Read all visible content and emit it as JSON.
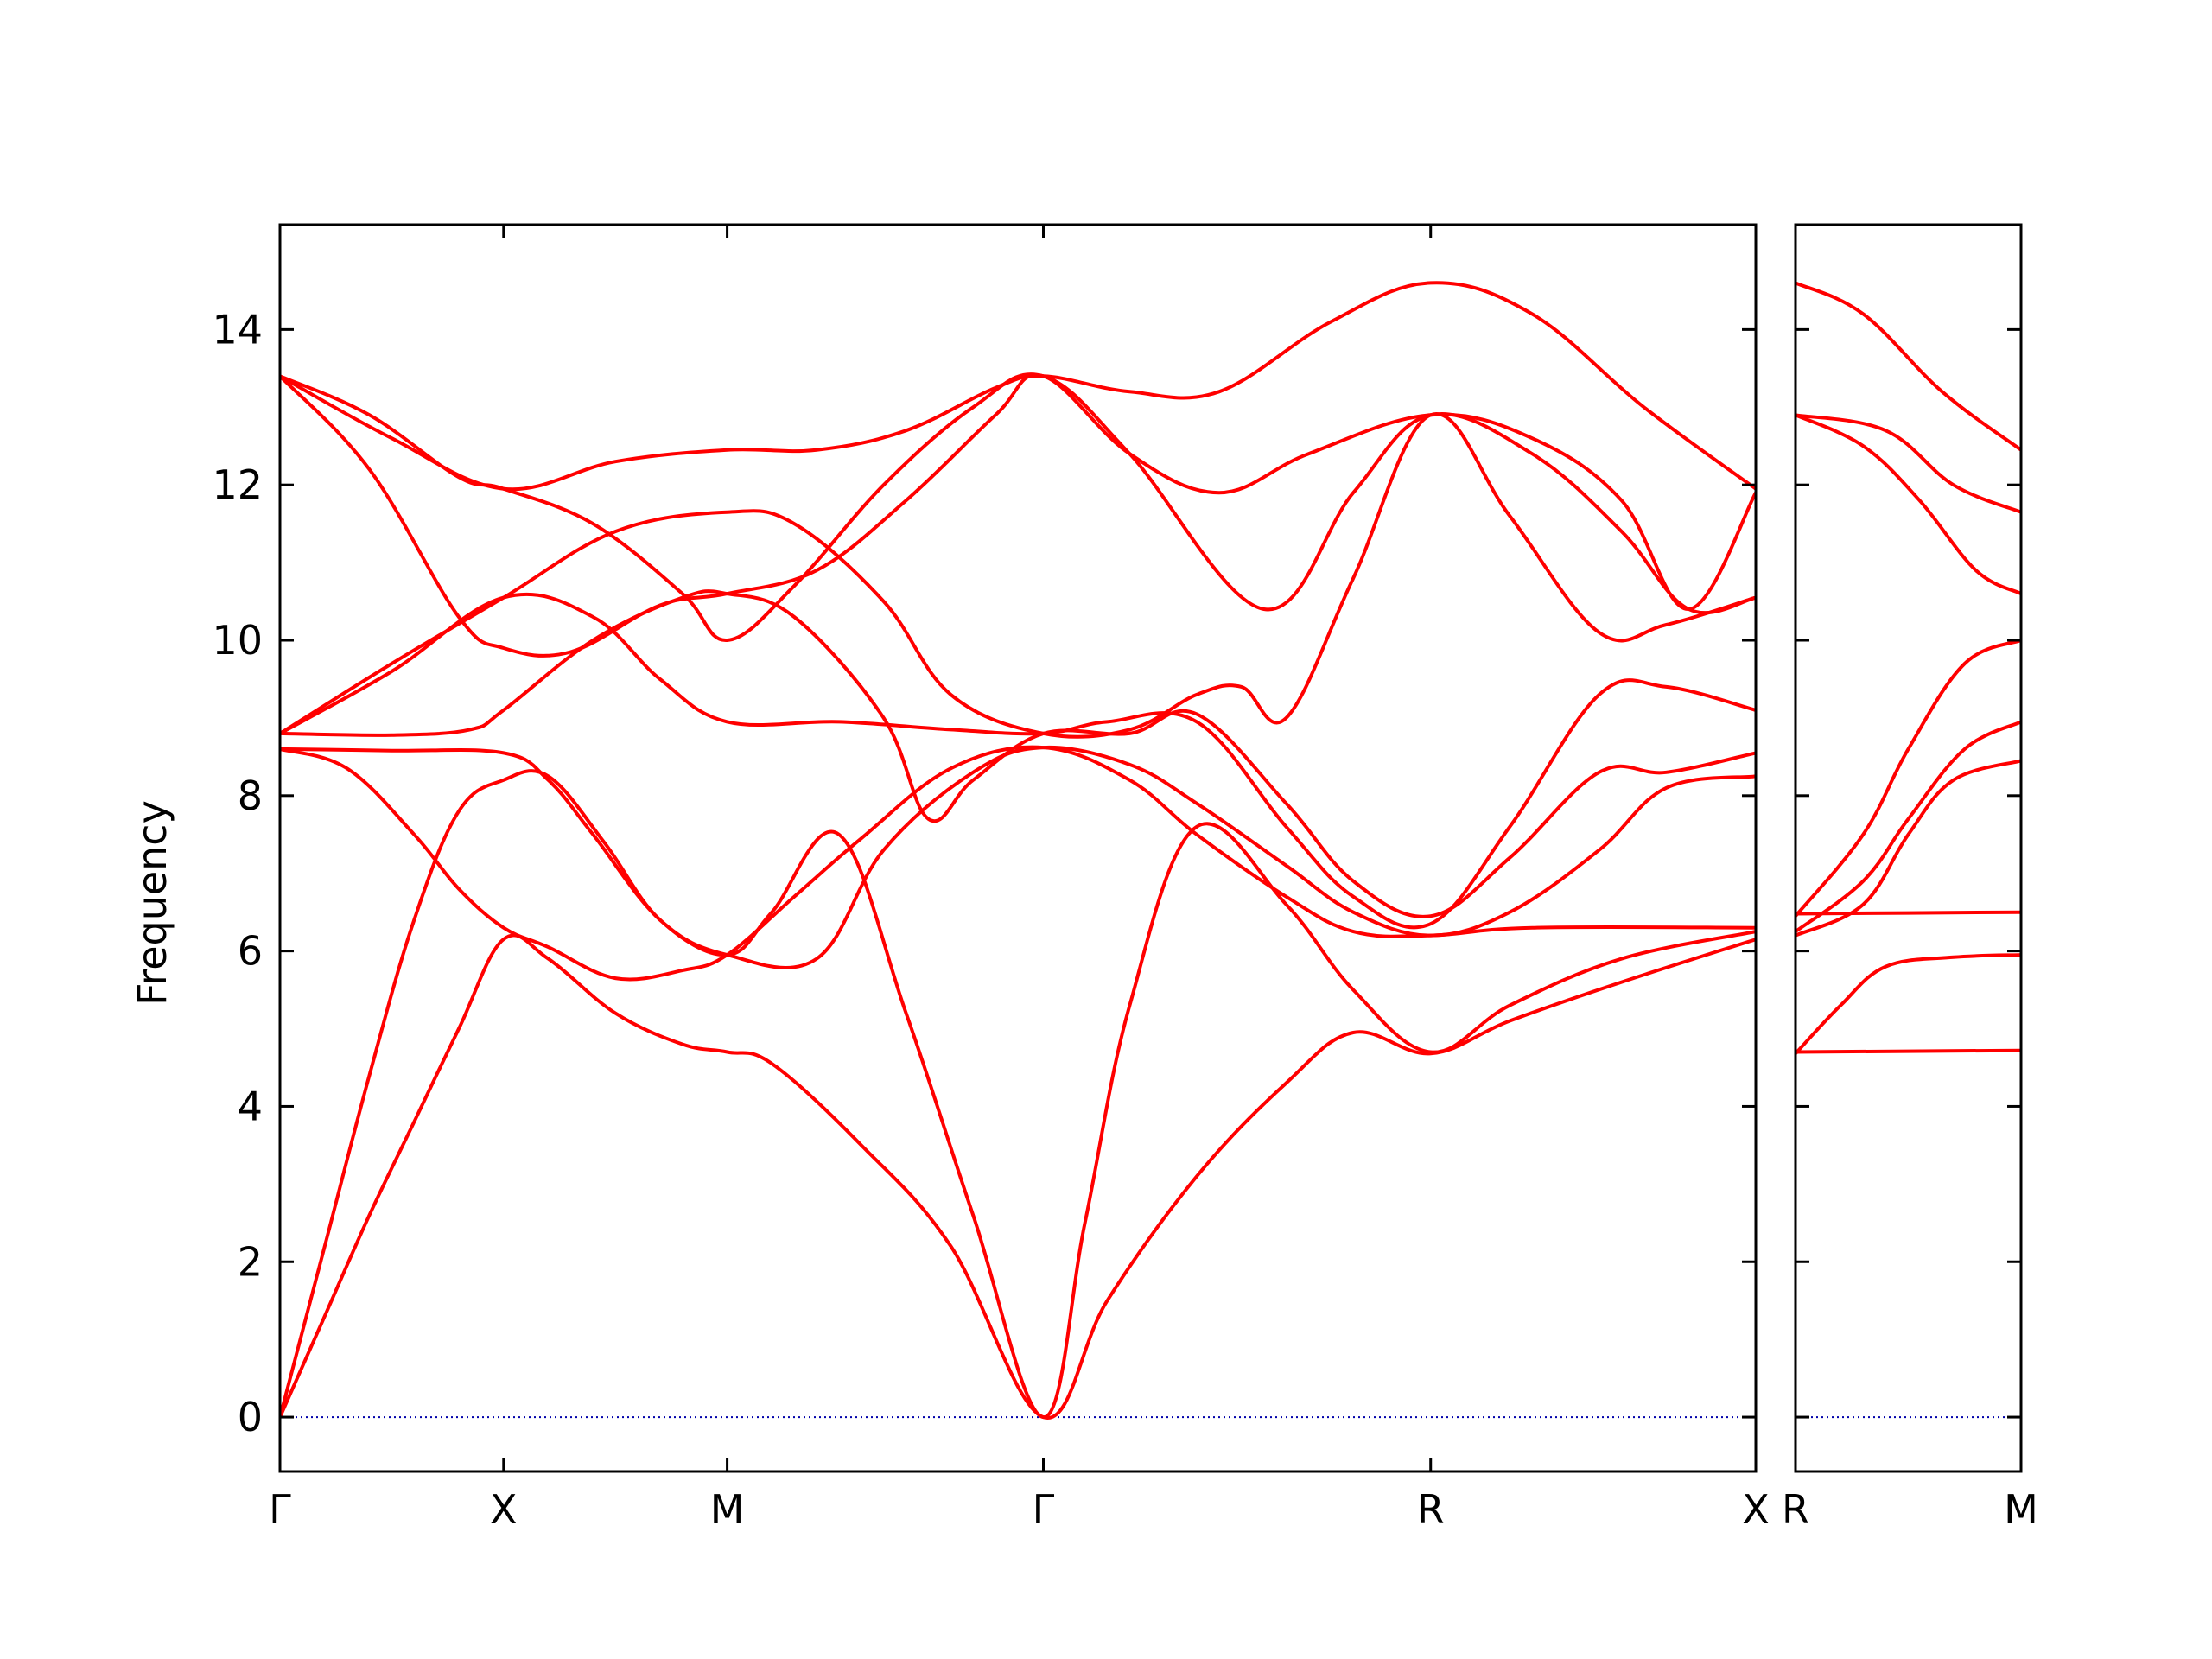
{
  "chart_data": {
    "type": "line",
    "ylabel": "Frequency",
    "ylim": [
      -0.7,
      15.35
    ],
    "yticks": [
      0,
      2,
      4,
      6,
      8,
      10,
      12,
      14
    ],
    "colors": {
      "bands": "#ff0000",
      "zero_line": "#0000aa",
      "axes": "#000000"
    },
    "panels": [
      {
        "name": "left",
        "xlim": [
          0,
          6.6
        ],
        "qticks": [
          {
            "label": "Γ",
            "x": 0
          },
          {
            "label": "X",
            "x": 1
          },
          {
            "label": "M",
            "x": 2
          },
          {
            "label": "Γ",
            "x": 3.414
          },
          {
            "label": "R",
            "x": 5.146
          },
          {
            "label": "X",
            "x": 6.6
          }
        ],
        "bands": [
          [
            [
              0,
              0
            ],
            [
              0.2,
              1.3
            ],
            [
              0.4,
              2.6
            ],
            [
              0.6,
              3.8
            ],
            [
              0.8,
              5
            ],
            [
              1,
              6.15
            ],
            [
              1.2,
              5.9
            ],
            [
              1.5,
              5.2
            ],
            [
              1.8,
              4.8
            ],
            [
              2,
              4.7
            ],
            [
              2.2,
              4.55
            ],
            [
              2.6,
              3.5
            ],
            [
              3,
              2.2
            ],
            [
              3.414,
              0
            ],
            [
              3.7,
              1.5
            ],
            [
              4.1,
              3.1
            ],
            [
              4.5,
              4.3
            ],
            [
              4.8,
              4.95
            ],
            [
              5.146,
              4.68
            ],
            [
              5.5,
              5.1
            ],
            [
              6,
              5.6
            ],
            [
              6.6,
              6.15
            ]
          ],
          [
            [
              0,
              0
            ],
            [
              0.2,
              2.2
            ],
            [
              0.4,
              4.4
            ],
            [
              0.6,
              6.4
            ],
            [
              0.8,
              7.8
            ],
            [
              1,
              8.2
            ],
            [
              1.2,
              8.25
            ],
            [
              1.45,
              7.4
            ],
            [
              1.7,
              6.4
            ],
            [
              2,
              5.95
            ],
            [
              2.2,
              6.5
            ],
            [
              2.5,
              7.5
            ],
            [
              2.8,
              5.2
            ],
            [
              3.1,
              2.6
            ],
            [
              3.414,
              0
            ],
            [
              3.6,
              2.5
            ],
            [
              3.8,
              5.3
            ],
            [
              4.1,
              7.6
            ],
            [
              4.5,
              6.6
            ],
            [
              4.8,
              5.5
            ],
            [
              5.146,
              4.7
            ],
            [
              5.5,
              5.3
            ],
            [
              6,
              5.9
            ],
            [
              6.6,
              6.25
            ]
          ],
          [
            [
              0,
              8.6
            ],
            [
              0.3,
              8.35
            ],
            [
              0.6,
              7.5
            ],
            [
              0.8,
              6.8
            ],
            [
              1,
              6.3
            ],
            [
              1.2,
              6.05
            ],
            [
              1.5,
              5.65
            ],
            [
              1.8,
              5.75
            ],
            [
              2,
              5.95
            ],
            [
              2.3,
              6.7
            ],
            [
              2.6,
              7.45
            ],
            [
              3,
              8.35
            ],
            [
              3.414,
              8.62
            ],
            [
              3.8,
              8.2
            ],
            [
              4.1,
              7.5
            ],
            [
              4.5,
              6.7
            ],
            [
              4.8,
              6.25
            ],
            [
              5.146,
              6.2
            ],
            [
              5.6,
              6.3
            ],
            [
              6.6,
              6.3
            ]
          ],
          [
            [
              0,
              8.6
            ],
            [
              0.5,
              8.58
            ],
            [
              1,
              8.55
            ],
            [
              1.2,
              8.2
            ],
            [
              1.4,
              7.5
            ],
            [
              1.7,
              6.4
            ],
            [
              2,
              5.95
            ],
            [
              2.4,
              5.9
            ],
            [
              2.7,
              7.3
            ],
            [
              3.1,
              8.3
            ],
            [
              3.414,
              8.62
            ],
            [
              3.8,
              8.4
            ],
            [
              4.1,
              7.9
            ],
            [
              4.5,
              7.1
            ],
            [
              4.8,
              6.5
            ],
            [
              5.146,
              6.2
            ],
            [
              5.5,
              6.5
            ],
            [
              5.9,
              7.3
            ],
            [
              6.2,
              8.1
            ],
            [
              6.6,
              8.25
            ]
          ],
          [
            [
              0,
              8.8
            ],
            [
              0.5,
              8.78
            ],
            [
              0.85,
              8.85
            ],
            [
              1,
              9.1
            ],
            [
              1.4,
              10
            ],
            [
              1.8,
              10.55
            ],
            [
              2,
              10.6
            ],
            [
              2.3,
              10.3
            ],
            [
              2.7,
              9
            ],
            [
              2.9,
              7.7
            ],
            [
              3.1,
              8.2
            ],
            [
              3.414,
              8.8
            ],
            [
              3.8,
              8.8
            ],
            [
              4.1,
              9.05
            ],
            [
              4.5,
              7.9
            ],
            [
              4.8,
              6.9
            ],
            [
              5.146,
              6.45
            ],
            [
              5.5,
              7.2
            ],
            [
              5.9,
              8.3
            ],
            [
              6.2,
              8.3
            ],
            [
              6.6,
              8.55
            ]
          ],
          [
            [
              0,
              8.8
            ],
            [
              0.5,
              9.6
            ],
            [
              1,
              10.55
            ],
            [
              1.4,
              10.3
            ],
            [
              1.7,
              9.5
            ],
            [
              2,
              8.95
            ],
            [
              2.5,
              8.95
            ],
            [
              3,
              8.85
            ],
            [
              3.414,
              8.8
            ],
            [
              3.7,
              8.95
            ],
            [
              4.1,
              8.95
            ],
            [
              4.5,
              7.6
            ],
            [
              4.8,
              6.7
            ],
            [
              5.146,
              6.35
            ],
            [
              5.5,
              7.6
            ],
            [
              5.9,
              9.3
            ],
            [
              6.2,
              9.4
            ],
            [
              6.6,
              9.1
            ]
          ],
          [
            [
              0,
              8.8
            ],
            [
              0.5,
              9.7
            ],
            [
              1,
              10.55
            ],
            [
              1.5,
              11.4
            ],
            [
              2,
              11.65
            ],
            [
              2.3,
              11.5
            ],
            [
              2.7,
              10.5
            ],
            [
              3,
              9.3
            ],
            [
              3.414,
              8.8
            ],
            [
              3.8,
              8.85
            ],
            [
              4.1,
              9.3
            ],
            [
              4.3,
              9.4
            ],
            [
              4.5,
              9
            ],
            [
              4.8,
              10.8
            ],
            [
              5.146,
              12.9
            ],
            [
              5.5,
              11.6
            ],
            [
              5.9,
              10.1
            ],
            [
              6.2,
              10.2
            ],
            [
              6.6,
              10.55
            ]
          ],
          [
            [
              0,
              13.4
            ],
            [
              0.4,
              12.2
            ],
            [
              0.8,
              10.3
            ],
            [
              1,
              9.9
            ],
            [
              1.3,
              9.85
            ],
            [
              1.7,
              10.45
            ],
            [
              2,
              10.6
            ],
            [
              2.4,
              10.9
            ],
            [
              2.8,
              11.8
            ],
            [
              3.2,
              12.9
            ],
            [
              3.414,
              13.4
            ],
            [
              3.8,
              12.4
            ],
            [
              4.2,
              11.9
            ],
            [
              4.6,
              12.4
            ],
            [
              5.146,
              12.9
            ],
            [
              5.6,
              12.6
            ],
            [
              6,
              11.8
            ],
            [
              6.3,
              10.4
            ],
            [
              6.6,
              11.9
            ]
          ],
          [
            [
              0,
              13.4
            ],
            [
              0.4,
              12.9
            ],
            [
              0.8,
              12.1
            ],
            [
              1,
              11.95
            ],
            [
              1.4,
              11.5
            ],
            [
              1.8,
              10.6
            ],
            [
              2,
              10
            ],
            [
              2.3,
              10.7
            ],
            [
              2.7,
              12
            ],
            [
              3.1,
              13
            ],
            [
              3.414,
              13.4
            ],
            [
              3.8,
              12.4
            ],
            [
              4.4,
              10.4
            ],
            [
              4.8,
              11.9
            ],
            [
              5.146,
              12.9
            ],
            [
              5.6,
              12.4
            ],
            [
              6,
              11.4
            ],
            [
              6.3,
              10.4
            ],
            [
              6.6,
              10.55
            ]
          ],
          [
            [
              0,
              13.4
            ],
            [
              0.5,
              12.6
            ],
            [
              1,
              11.95
            ],
            [
              1.5,
              12.3
            ],
            [
              2,
              12.45
            ],
            [
              2.4,
              12.45
            ],
            [
              2.8,
              12.7
            ],
            [
              3.2,
              13.25
            ],
            [
              3.414,
              13.4
            ],
            [
              3.8,
              13.2
            ],
            [
              4.2,
              13.2
            ],
            [
              4.7,
              14.1
            ],
            [
              5.146,
              14.6
            ],
            [
              5.6,
              14.2
            ],
            [
              6.1,
              13
            ],
            [
              6.6,
              11.95
            ]
          ]
        ]
      },
      {
        "name": "right",
        "xlim": [
          0,
          1
        ],
        "qticks": [
          {
            "label": "R",
            "x": 0
          },
          {
            "label": "M",
            "x": 1
          }
        ],
        "bands": [
          [
            [
              0,
              4.7
            ],
            [
              1,
              4.72
            ]
          ],
          [
            [
              0,
              4.68
            ],
            [
              0.2,
              5.3
            ],
            [
              0.4,
              5.8
            ],
            [
              0.7,
              5.92
            ],
            [
              1,
              5.95
            ]
          ],
          [
            [
              0,
              6.48
            ],
            [
              1,
              6.5
            ]
          ],
          [
            [
              0,
              6.2
            ],
            [
              0.3,
              6.6
            ],
            [
              0.5,
              7.5
            ],
            [
              0.7,
              8.2
            ],
            [
              1,
              8.45
            ]
          ],
          [
            [
              0,
              6.25
            ],
            [
              0.3,
              6.9
            ],
            [
              0.5,
              7.7
            ],
            [
              0.75,
              8.6
            ],
            [
              1,
              8.95
            ]
          ],
          [
            [
              0,
              6.45
            ],
            [
              0.3,
              7.5
            ],
            [
              0.5,
              8.6
            ],
            [
              0.75,
              9.7
            ],
            [
              1,
              10
            ]
          ],
          [
            [
              0,
              12.9
            ],
            [
              0.3,
              12.5
            ],
            [
              0.55,
              11.8
            ],
            [
              0.8,
              10.9
            ],
            [
              1,
              10.6
            ]
          ],
          [
            [
              0,
              12.9
            ],
            [
              0.4,
              12.7
            ],
            [
              0.7,
              12
            ],
            [
              1,
              11.65
            ]
          ],
          [
            [
              0,
              14.6
            ],
            [
              0.3,
              14.2
            ],
            [
              0.65,
              13.2
            ],
            [
              1,
              12.45
            ]
          ]
        ]
      }
    ]
  }
}
